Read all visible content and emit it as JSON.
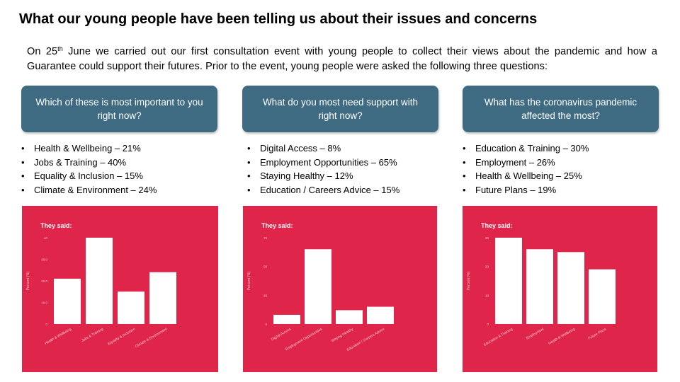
{
  "title": "What our young people have been telling us about their issues and concerns",
  "intro": {
    "part1": "On 25",
    "sup": "th",
    "part2": " June we carried out our first consultation event with young people to collect their views about the pandemic and how a Guarantee could support their futures. Prior to the event, young people were asked the following three questions:"
  },
  "questions": [
    {
      "question": "Which of these is most important to you right now?",
      "answers": [
        "Health & Wellbeing – 21%",
        "Jobs & Training – 40%",
        "Equality & Inclusion – 15%",
        "Climate & Environment – 24%"
      ]
    },
    {
      "question": "What do you most need support with right now?",
      "answers": [
        "Digital Access – 8%",
        "Employment Opportunities – 65%",
        "Staying Healthy – 12%",
        "Education / Careers Advice – 15%"
      ]
    },
    {
      "question": "What has the coronavirus pandemic affected the most?",
      "answers": [
        "Education & Training – 30%",
        "Employment – 26%",
        "Health & Wellbeing – 25%",
        "Future Plans – 19%"
      ]
    }
  ],
  "colors": {
    "question_box": "#3e6b82",
    "chart_background": "#e0254a",
    "bar": "#ffffff"
  },
  "chart_data": [
    {
      "type": "bar",
      "title": "They said:",
      "ylabel": "Percent (%)",
      "categories": [
        "Health & Wellbeing",
        "Jobs & Training",
        "Equality & Inclusion",
        "Climate & Environment"
      ],
      "values": [
        21,
        40,
        15,
        24
      ],
      "ylim": [
        0,
        40
      ],
      "yticks": [
        "0",
        "10.0",
        "20.0",
        "30.0",
        "40"
      ],
      "grid": false,
      "legend": "none"
    },
    {
      "type": "bar",
      "title": "They said:",
      "ylabel": "Percent (%)",
      "categories": [
        "Digital Access",
        "Employment Opportunities",
        "Staying Healthy",
        "Education / Careers Advice"
      ],
      "values": [
        8,
        65,
        12,
        15
      ],
      "ylim": [
        0,
        75
      ],
      "yticks": [
        "0",
        "25",
        "50",
        "75"
      ],
      "grid": false,
      "legend": "none"
    },
    {
      "type": "bar",
      "title": "They said:",
      "ylabel": "Percent (%)",
      "categories": [
        "Education & Training",
        "Employment",
        "Health & Wellbeing",
        "Future Plans"
      ],
      "values": [
        30,
        26,
        25,
        19
      ],
      "ylim": [
        0,
        30
      ],
      "yticks": [
        "0",
        "10",
        "20",
        "30"
      ],
      "grid": false,
      "legend": "none"
    }
  ]
}
